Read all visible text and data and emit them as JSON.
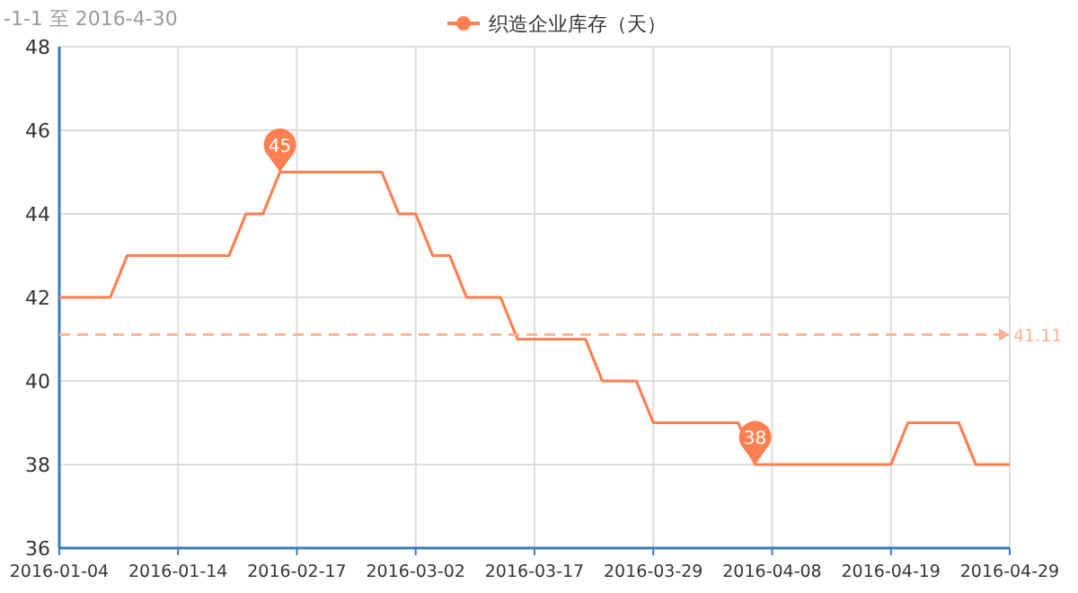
{
  "chart_data": {
    "type": "line",
    "subtitle": "-1-1 至 2016-4-30",
    "categories": [
      "2016-01-04",
      null,
      null,
      null,
      null,
      null,
      null,
      "2016-01-14",
      null,
      null,
      null,
      null,
      null,
      null,
      "2016-02-17",
      null,
      null,
      null,
      null,
      null,
      null,
      "2016-03-02",
      null,
      null,
      null,
      null,
      null,
      null,
      "2016-03-17",
      null,
      null,
      null,
      null,
      null,
      null,
      "2016-03-29",
      null,
      null,
      null,
      null,
      null,
      null,
      "2016-04-08",
      null,
      null,
      null,
      null,
      null,
      null,
      "2016-04-19",
      null,
      null,
      null,
      null,
      null,
      null,
      "2016-04-29"
    ],
    "series": [
      {
        "name": "织造企业库存（天）",
        "color": "#ff7f50",
        "values": [
          42,
          42,
          42,
          42,
          43,
          43,
          43,
          43,
          43,
          43,
          43,
          44,
          44,
          45,
          45,
          45,
          45,
          45,
          45,
          45,
          44,
          44,
          43,
          43,
          42,
          42,
          42,
          41,
          41,
          41,
          41,
          41,
          40,
          40,
          40,
          39,
          39,
          39,
          39,
          39,
          39,
          38,
          38,
          38,
          38,
          38,
          38,
          38,
          38,
          38,
          39,
          39,
          39,
          39,
          38,
          38,
          38
        ]
      }
    ],
    "ylim": [
      36,
      48
    ],
    "yticks": [
      36,
      38,
      40,
      42,
      44,
      46,
      48
    ],
    "grid": true,
    "legend": "top",
    "ref_lines": [
      {
        "axis": "y",
        "value": 41.11,
        "label": "41.11",
        "color": "#ffb08f",
        "line_style": "dashed"
      }
    ],
    "annotations": [
      {
        "text": "45",
        "y": 45
      },
      {
        "text": "38",
        "y": 38
      }
    ]
  }
}
